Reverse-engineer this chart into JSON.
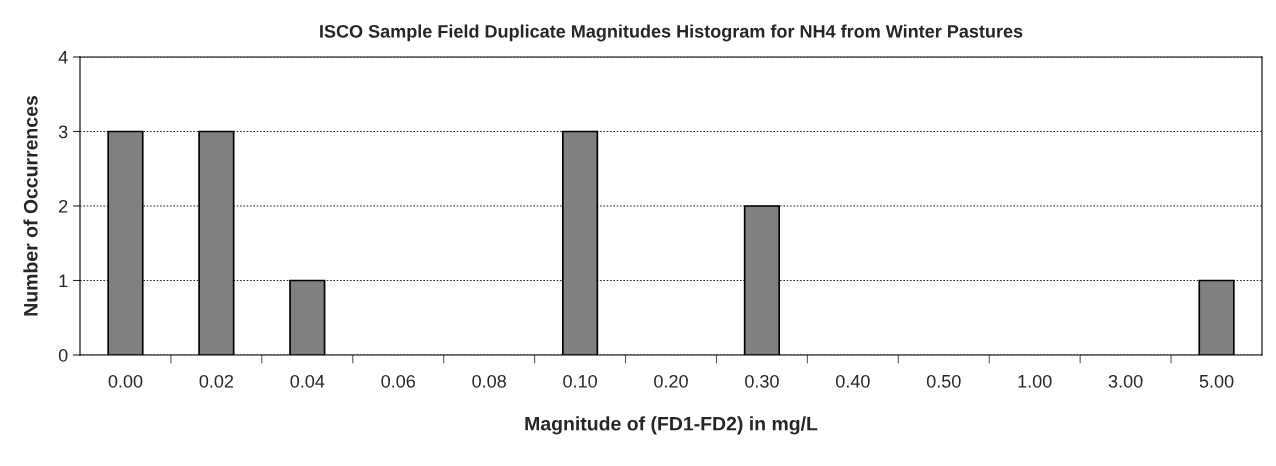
{
  "chart_data": {
    "type": "bar",
    "title": "ISCO Sample Field Duplicate Magnitudes Histogram for NH4 from Winter Pastures",
    "xlabel": "Magnitude of (FD1-FD2) in mg/L",
    "ylabel": "Number of Occurrences",
    "categories": [
      "0.00",
      "0.02",
      "0.04",
      "0.06",
      "0.08",
      "0.10",
      "0.20",
      "0.30",
      "0.40",
      "0.50",
      "1.00",
      "3.00",
      "5.00"
    ],
    "values": [
      3,
      3,
      1,
      0,
      0,
      3,
      0,
      2,
      0,
      0,
      0,
      0,
      1
    ],
    "color": "#808080",
    "ylim": [
      0,
      4
    ],
    "yticks": [
      0,
      1,
      2,
      3,
      4
    ],
    "grid": "y",
    "legend": false
  }
}
